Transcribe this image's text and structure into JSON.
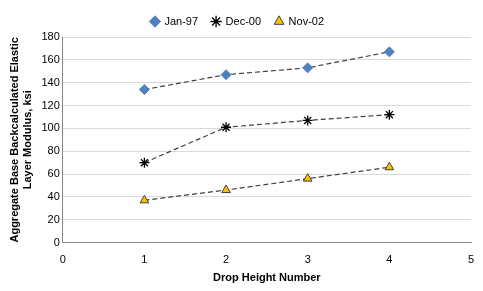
{
  "chart_data": {
    "type": "line",
    "xlabel": "Drop Height Number",
    "ylabel": [
      "Aggregate Base Backcalculated Elastic",
      "Layer Modulus, ksi"
    ],
    "x": [
      1,
      2,
      3,
      4
    ],
    "series": [
      {
        "name": "Jan-97",
        "color": "#4f81bd",
        "marker": "diamond",
        "line_style": "dashed",
        "values": [
          134,
          147,
          153,
          167
        ]
      },
      {
        "name": "Dec-00",
        "color": "#000000",
        "marker": "star",
        "line_style": "dashed",
        "values": [
          70,
          101,
          107,
          112
        ]
      },
      {
        "name": "Nov-02",
        "color": "#ffc000",
        "marker": "triangle",
        "line_style": "dashed",
        "values": [
          37,
          46,
          56,
          66
        ]
      }
    ],
    "xlim": [
      0,
      5
    ],
    "xticks": [
      0,
      1,
      2,
      3,
      4,
      5
    ],
    "ylim": [
      0,
      180
    ],
    "yticks": [
      0,
      20,
      40,
      60,
      80,
      100,
      120,
      140,
      160,
      180
    ],
    "grid": true,
    "legend": "top"
  }
}
